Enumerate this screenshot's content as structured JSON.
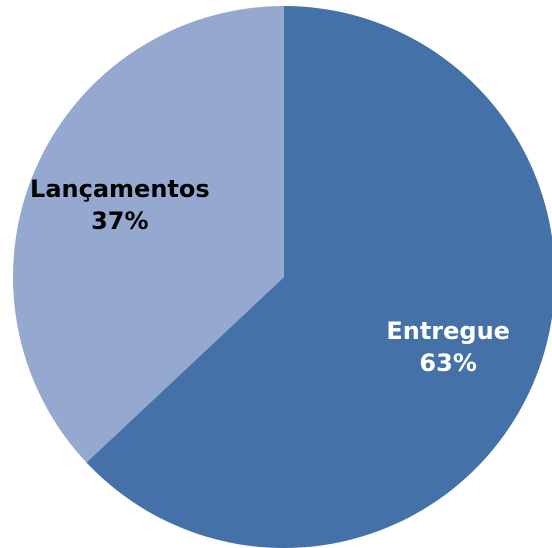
{
  "chart_data": {
    "type": "pie",
    "categories": [
      "Entregue",
      "Lançamentos"
    ],
    "values": [
      63,
      37
    ],
    "value_labels": [
      "63%",
      "37%"
    ],
    "colors": [
      "#4472a8",
      "#95a9d0"
    ]
  }
}
